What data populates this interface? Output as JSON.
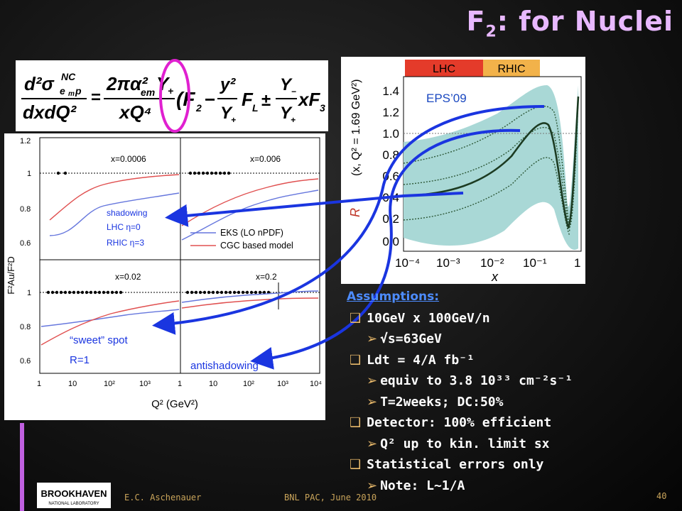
{
  "slide": {
    "title": "F",
    "title_sub": "2",
    "title_rest": ": for Nuclei",
    "formula": {
      "lhs_num": "d²σ",
      "lhs_sub": "e",
      "lhs_sup": "NC",
      "lhs_subsub": "m",
      "lhs_p": "p",
      "lhs_den": "dxdQ²",
      "rhs_num": "2πα²",
      "rhs_sub": "em",
      "rhs_y": "Y",
      "rhs_plus": "+",
      "rhs_den": "xQ⁴",
      "f2": "(F",
      "f2_sub": "2",
      "minus": "−",
      "y2": "y²",
      "yplus": "Y",
      "fl": "F",
      "fl_sub": "L",
      "pm": "±",
      "yminus": "Y",
      "xf3": "xF",
      "xf3_sub": "3",
      "close": ")"
    },
    "left_plot": {
      "ylabel": "F²Au/F²D",
      "xlabel": "Q² (GeV²)",
      "yticks_top": [
        "1.2",
        "1",
        "0.8",
        "0.6"
      ],
      "yticks_bottom": [
        "1",
        "0.8",
        "0.6"
      ],
      "xticks": [
        "1",
        "10",
        "10²",
        "10³",
        "1",
        "10",
        "10²",
        "10³",
        "10⁴"
      ],
      "panels": [
        "x=0.0006",
        "x=0.006",
        "x=0.02",
        "x=0.2"
      ],
      "legend": [
        "EKS (LO nPDF)",
        "CGC based model"
      ],
      "annot_shadowing": [
        "shadowing",
        "LHC η=0",
        "RHIC η=3"
      ],
      "annot_sweet": [
        "“sweet” spot",
        "R=1"
      ],
      "annot_antishadowing": "antishadowing"
    },
    "right_plot": {
      "ylabel": "R",
      "ylabel_full": "R^Pb_G (x, Q²=1.69 GeV²)",
      "yticks": [
        "1.4",
        "1.2",
        "1.0",
        "0.8",
        "0.6",
        "0.4",
        "0.2",
        "0.0"
      ],
      "xticks": [
        "10⁻⁴",
        "10⁻³",
        "10⁻²",
        "10⁻¹",
        "1"
      ],
      "xlabel": "x",
      "label": "EPS’09",
      "bar_lhc": "LHC",
      "bar_rhic": "RHIC"
    },
    "assumptions": {
      "header": "Assumptions:",
      "items": [
        {
          "level": 1,
          "text": "10GeV x 100GeV/n"
        },
        {
          "level": 2,
          "text": "√s=63GeV"
        },
        {
          "level": 1,
          "text": "Ldt = 4/A fb⁻¹"
        },
        {
          "level": 2,
          "text": "equiv to 3.8 10³³ cm⁻²s⁻¹"
        },
        {
          "level": 2,
          "text": "T=2weeks; DC:50%"
        },
        {
          "level": 1,
          "text": "Detector: 100% efficient"
        },
        {
          "level": 2,
          "text": "Q² up to kin. limit sx"
        },
        {
          "level": 1,
          "text": "Statistical errors only"
        },
        {
          "level": 2,
          "text": "Note: L~1/A"
        }
      ]
    },
    "footer": {
      "logo": "BROOKHAVEN",
      "logo_sub": "NATIONAL LABORATORY",
      "author": "E.C. Aschenauer",
      "event": "BNL PAC, June 2010",
      "page": "40"
    },
    "colors": {
      "title": "#e8b8ff",
      "accent_bar": "#c060e0",
      "arrow": "#1a35e0",
      "eks": "#6677dd",
      "cgc": "#e05050",
      "band": "#a9d8d6",
      "footer": "#c9a45a",
      "header": "#4d8cff",
      "bullet": "#e7b86a"
    }
  }
}
